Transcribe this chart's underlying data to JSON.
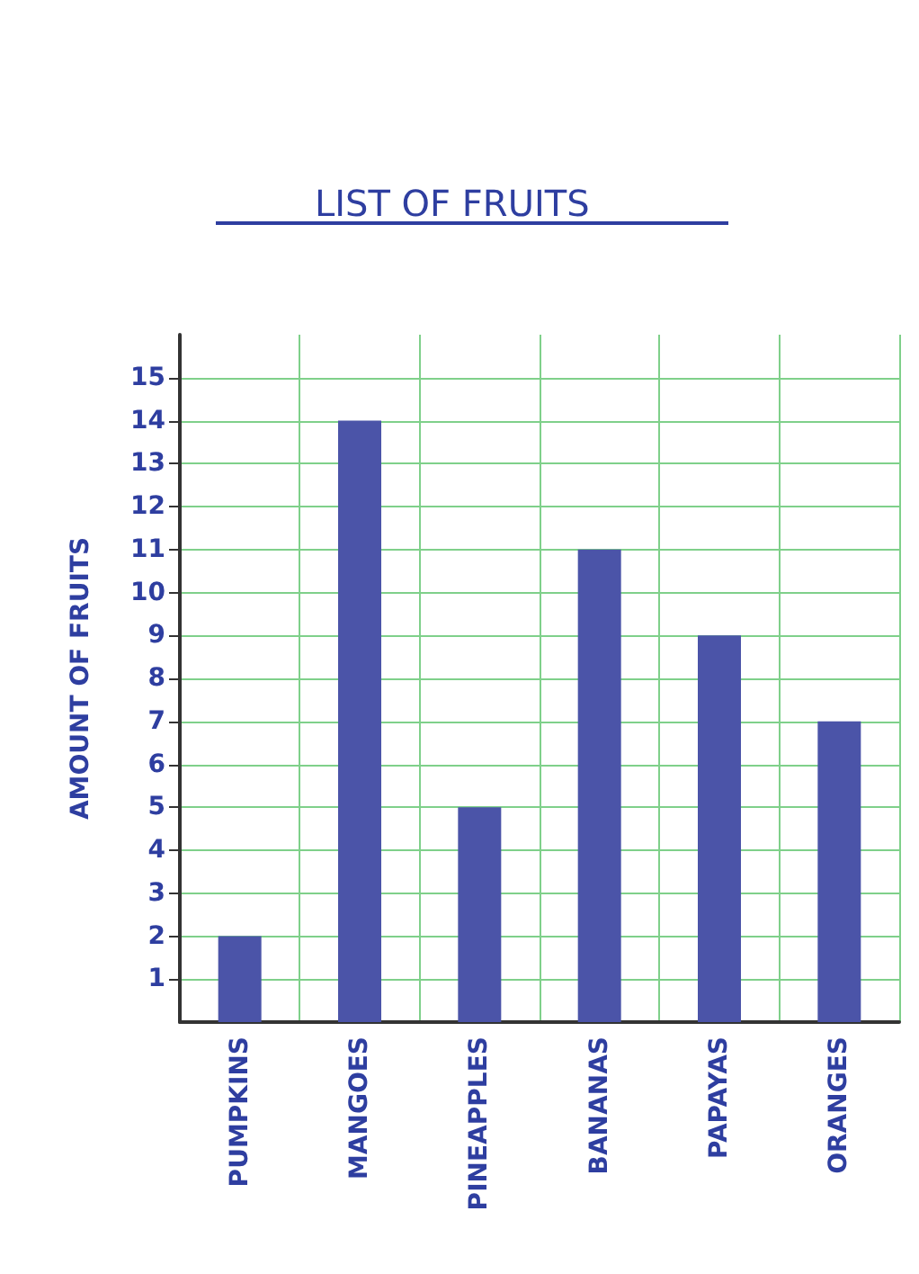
{
  "chart_data": {
    "type": "bar",
    "title": "LIST OF FRUITS",
    "ylabel": "AMOUNT OF FRUITS",
    "categories": [
      "PUMPKINS",
      "MANGOES",
      "PINEAPPLES",
      "BANANAS",
      "PAPAYAS",
      "ORANGES"
    ],
    "values": [
      2,
      14,
      5,
      11,
      9,
      7
    ],
    "color": "#4b54a8",
    "ylim": [
      0,
      16
    ],
    "yticks": [
      1,
      2,
      3,
      4,
      5,
      6,
      7,
      8,
      9,
      10,
      11,
      12,
      13,
      14,
      15
    ],
    "grid": true
  }
}
